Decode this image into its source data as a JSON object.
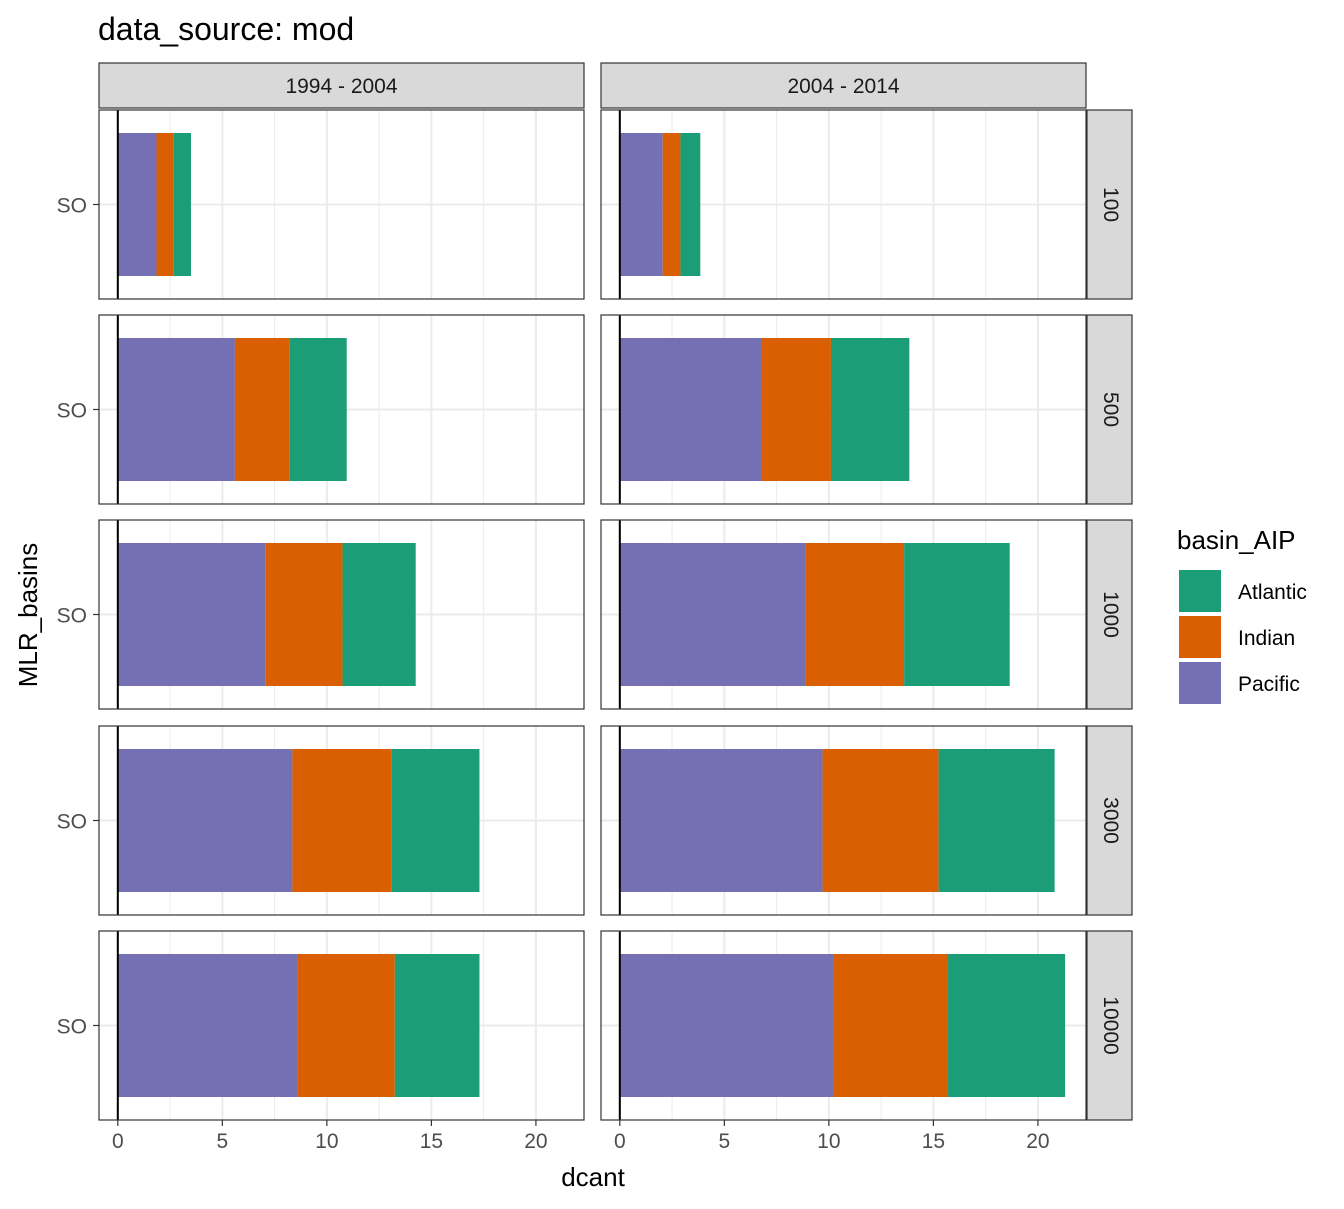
{
  "title": "data_source: mod",
  "chart_data": {
    "type": "bar",
    "orientation": "horizontal",
    "stacked": true,
    "xlabel": "dcant",
    "ylabel": "MLR_basins",
    "xlim": [
      -0.9,
      22.3
    ],
    "x_ticks": [
      0,
      5,
      10,
      15,
      20
    ],
    "y_category": "SO",
    "grid": true,
    "legend": {
      "title": "basin_AIP",
      "position": "right",
      "entries": [
        {
          "name": "Atlantic",
          "color": "#1b9e77"
        },
        {
          "name": "Indian",
          "color": "#d95f02"
        },
        {
          "name": "Pacific",
          "color": "#7570b3"
        }
      ]
    },
    "stack_order": [
      "Pacific",
      "Indian",
      "Atlantic"
    ],
    "col_facets": [
      "1994 - 2004",
      "2004 - 2014"
    ],
    "row_facets": [
      "100",
      "500",
      "1000",
      "3000",
      "10000"
    ],
    "panels": [
      {
        "period": "1994 - 2004",
        "depth": "100",
        "values": {
          "Pacific": 1.85,
          "Indian": 0.8,
          "Atlantic": 0.85
        }
      },
      {
        "period": "2004 - 2014",
        "depth": "100",
        "values": {
          "Pacific": 2.05,
          "Indian": 0.85,
          "Atlantic": 0.95
        }
      },
      {
        "period": "1994 - 2004",
        "depth": "500",
        "values": {
          "Pacific": 5.6,
          "Indian": 2.6,
          "Atlantic": 2.75
        }
      },
      {
        "period": "2004 - 2014",
        "depth": "500",
        "values": {
          "Pacific": 6.8,
          "Indian": 3.3,
          "Atlantic": 3.75
        }
      },
      {
        "period": "1994 - 2004",
        "depth": "1000",
        "values": {
          "Pacific": 7.05,
          "Indian": 3.7,
          "Atlantic": 3.5
        }
      },
      {
        "period": "2004 - 2014",
        "depth": "1000",
        "values": {
          "Pacific": 8.9,
          "Indian": 4.7,
          "Atlantic": 5.05
        }
      },
      {
        "period": "1994 - 2004",
        "depth": "3000",
        "values": {
          "Pacific": 8.35,
          "Indian": 4.75,
          "Atlantic": 4.2
        }
      },
      {
        "period": "2004 - 2014",
        "depth": "3000",
        "values": {
          "Pacific": 9.7,
          "Indian": 5.55,
          "Atlantic": 5.55
        }
      },
      {
        "period": "1994 - 2004",
        "depth": "10000",
        "values": {
          "Pacific": 8.6,
          "Indian": 4.65,
          "Atlantic": 4.05
        }
      },
      {
        "period": "2004 - 2014",
        "depth": "10000",
        "values": {
          "Pacific": 10.2,
          "Indian": 5.5,
          "Atlantic": 5.6
        }
      }
    ]
  }
}
